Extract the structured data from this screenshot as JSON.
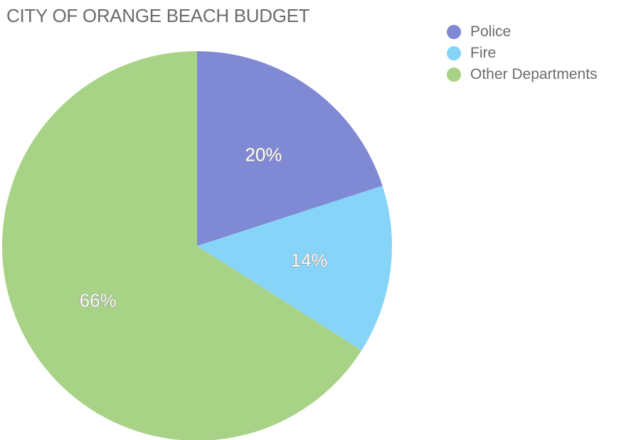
{
  "chart_data": {
    "type": "pie",
    "title": "CITY OF ORANGE BEACH BUDGET",
    "categories": [
      "Police",
      "Fire",
      "Other Departments"
    ],
    "values": [
      20,
      14,
      66
    ],
    "labels": [
      "20%",
      "14%",
      "66%"
    ],
    "colors": [
      "#8089d4",
      "#87d4f9",
      "#a8d386"
    ],
    "legend_placement": "top-right"
  }
}
